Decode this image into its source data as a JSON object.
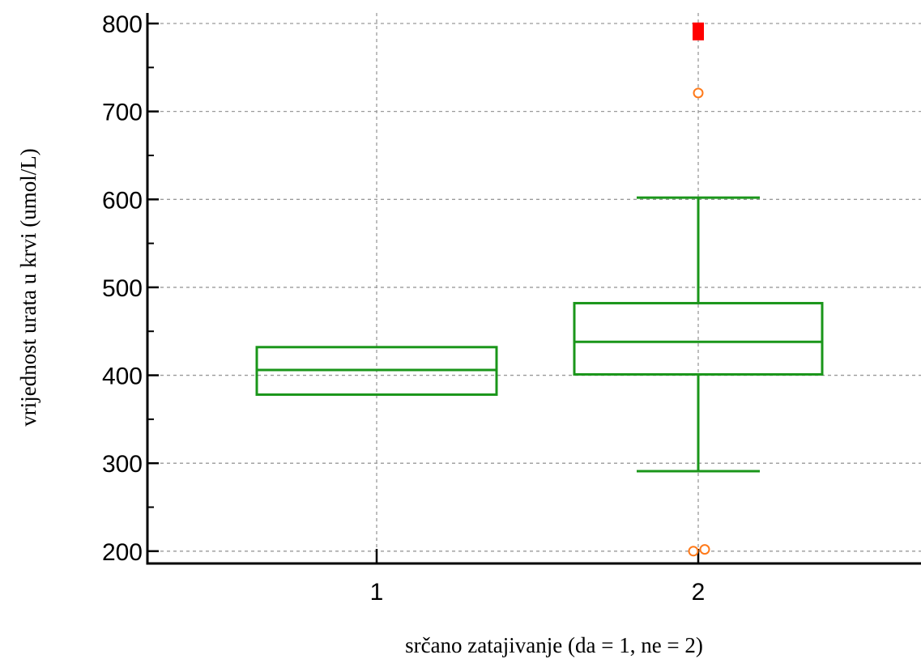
{
  "chart_data": {
    "type": "box",
    "xlabel": "srčano zatajivanje (da = 1, ne = 2)",
    "ylabel": "vrijednost urata  u krvi (umol/L)",
    "categories": [
      "1",
      "2"
    ],
    "ylim": [
      186,
      812
    ],
    "yticks": [
      200,
      300,
      400,
      500,
      600,
      700,
      800
    ],
    "grid": true,
    "boxes": [
      {
        "category": "1",
        "q1": 378,
        "median": 406,
        "q3": 432,
        "whisker_low": null,
        "whisker_high": null,
        "outliers": [],
        "far_outliers": []
      },
      {
        "category": "2",
        "q1": 401,
        "median": 438,
        "q3": 482,
        "whisker_low": 291,
        "whisker_high": 602,
        "outliers": [
          721,
          200,
          202
        ],
        "far_outliers": [
          791
        ]
      }
    ],
    "colors": {
      "box": "#1a961a",
      "outlier": "#ff7a1a",
      "far_outlier": "#ff0000",
      "grid": "#9a9a9a",
      "axis": "#000000"
    }
  }
}
